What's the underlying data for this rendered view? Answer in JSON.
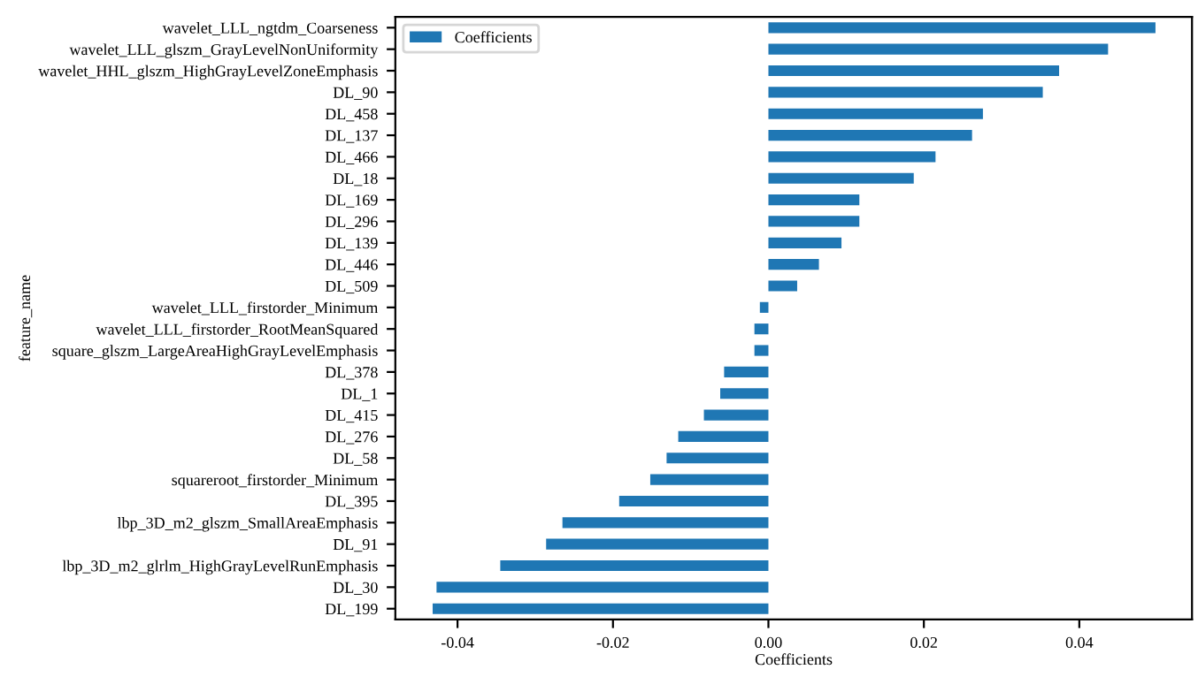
{
  "chart_data": {
    "type": "bar",
    "orientation": "horizontal",
    "xlabel": "Coefficients",
    "ylabel": "feature_name",
    "categories": [
      "wavelet_LLL_ngtdm_Coarseness",
      "wavelet_LLL_glszm_GrayLevelNonUniformity",
      "wavelet_HHL_glszm_HighGrayLevelZoneEmphasis",
      "DL_90",
      "DL_458",
      "DL_137",
      "DL_466",
      "DL_18",
      "DL_169",
      "DL_296",
      "DL_139",
      "DL_446",
      "DL_509",
      "wavelet_LLL_firstorder_Minimum",
      "wavelet_LLL_firstorder_RootMeanSquared",
      "square_glszm_LargeAreaHighGrayLevelEmphasis",
      "DL_378",
      "DL_1",
      "DL_415",
      "DL_276",
      "DL_58",
      "squareroot_firstorder_Minimum",
      "DL_395",
      "lbp_3D_m2_glszm_SmallAreaEmphasis",
      "DL_91",
      "lbp_3D_m2_glrlm_HighGrayLevelRunEmphasis",
      "DL_30",
      "DL_199"
    ],
    "series": [
      {
        "name": "Coefficients",
        "color": "#1f77b4",
        "values": [
          0.0498,
          0.0437,
          0.0374,
          0.0353,
          0.0276,
          0.0262,
          0.0215,
          0.0187,
          0.0117,
          0.0117,
          0.0094,
          0.0065,
          0.0037,
          -0.0011,
          -0.0018,
          -0.0018,
          -0.0057,
          -0.0062,
          -0.0083,
          -0.0116,
          -0.0131,
          -0.0152,
          -0.0192,
          -0.0265,
          -0.0286,
          -0.0345,
          -0.0427,
          -0.0432
        ]
      }
    ],
    "xlim": [
      -0.048,
      0.0545
    ],
    "xticks": [
      {
        "value": -0.04,
        "label": "-0.04"
      },
      {
        "value": -0.02,
        "label": "-0.02"
      },
      {
        "value": 0,
        "label": "0.00"
      },
      {
        "value": 0.02,
        "label": "0.02"
      },
      {
        "value": 0.04,
        "label": "0.04"
      }
    ],
    "legend": "top left",
    "grid": false
  }
}
